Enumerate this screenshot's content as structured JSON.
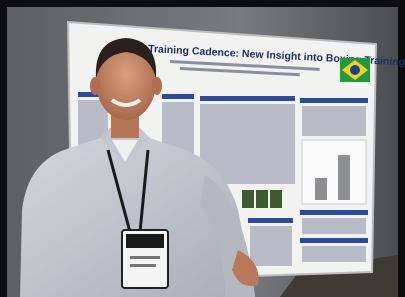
{
  "poster": {
    "title": "Training Cadence: New Insight into Boxing Training"
  }
}
